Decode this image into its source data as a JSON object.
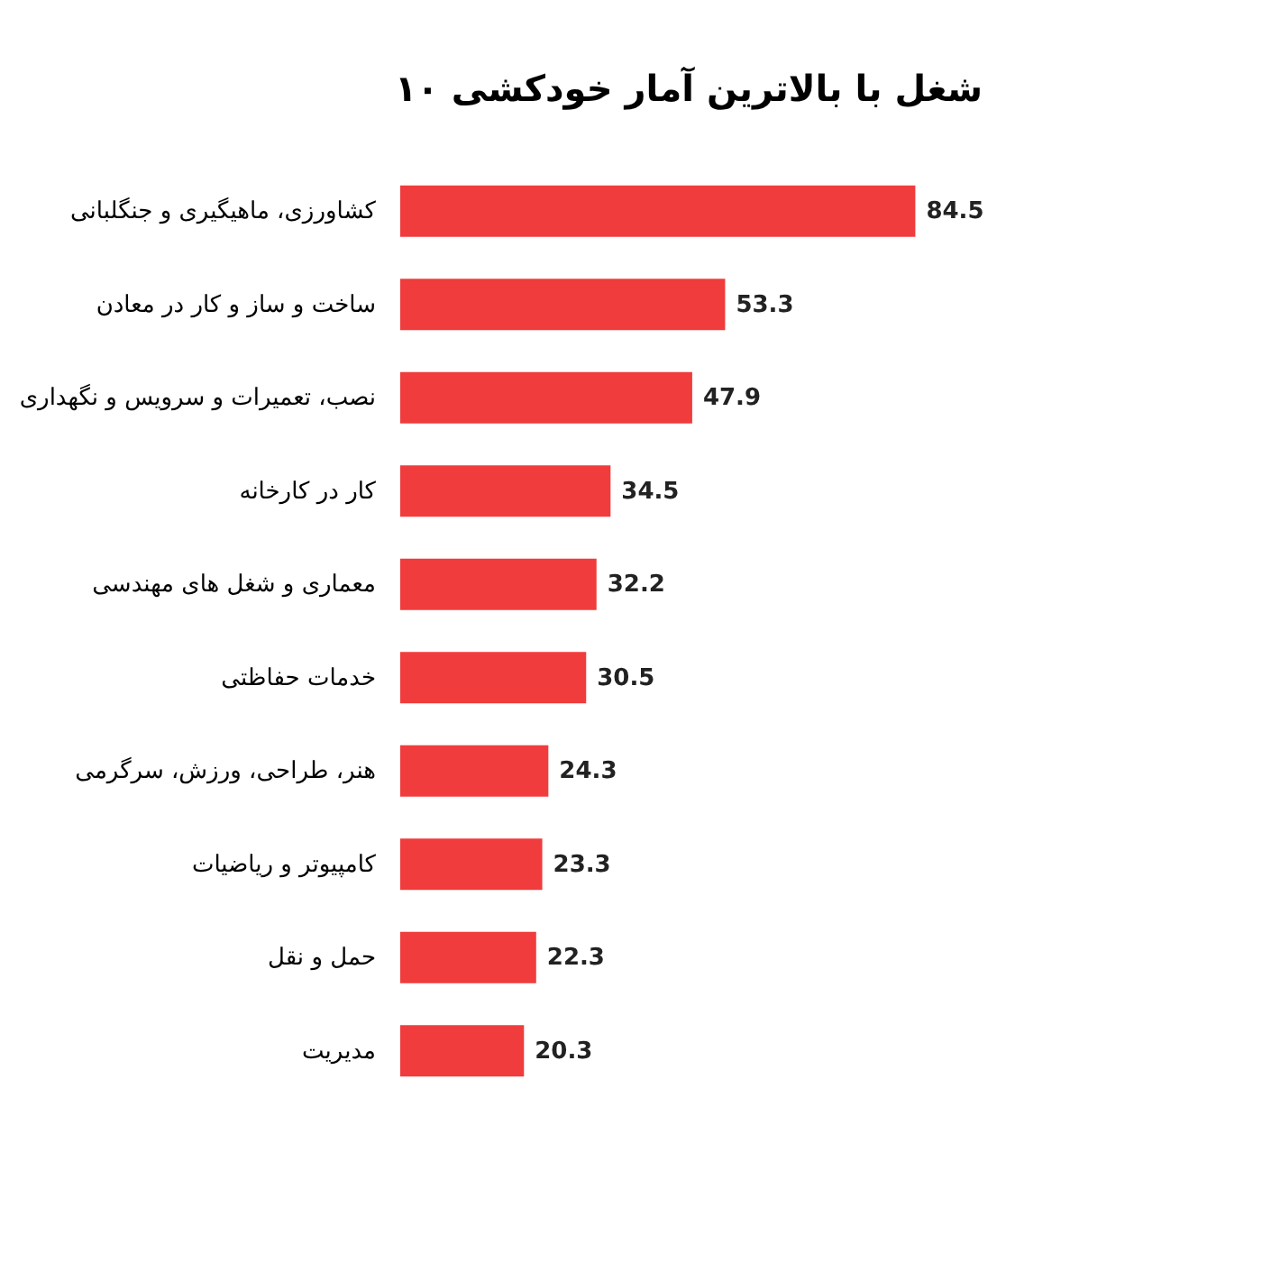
{
  "chart_data": {
    "type": "bar",
    "orientation": "horizontal",
    "title": "۱۰ شغل با بالاترین آمار خودکشی",
    "categories": [
      "کشاورزی، ماهیگیری و جنگلبانی",
      "ساخت و ساز و کار در معادن",
      "نصب، تعمیرات و سرویس و نگهداری",
      "کار در کارخانه",
      "معماری و شغل های مهندسی",
      "خدمات حفاظتی",
      "هنر، طراحی، ورزش، سرگرمی",
      "کامپیوتر و ریاضیات",
      "حمل و نقل",
      "مدیریت"
    ],
    "values": [
      84.5,
      53.3,
      47.9,
      34.5,
      32.2,
      30.5,
      24.3,
      23.3,
      22.3,
      20.3
    ],
    "color": "#f03c3c",
    "data_labels": true
  }
}
